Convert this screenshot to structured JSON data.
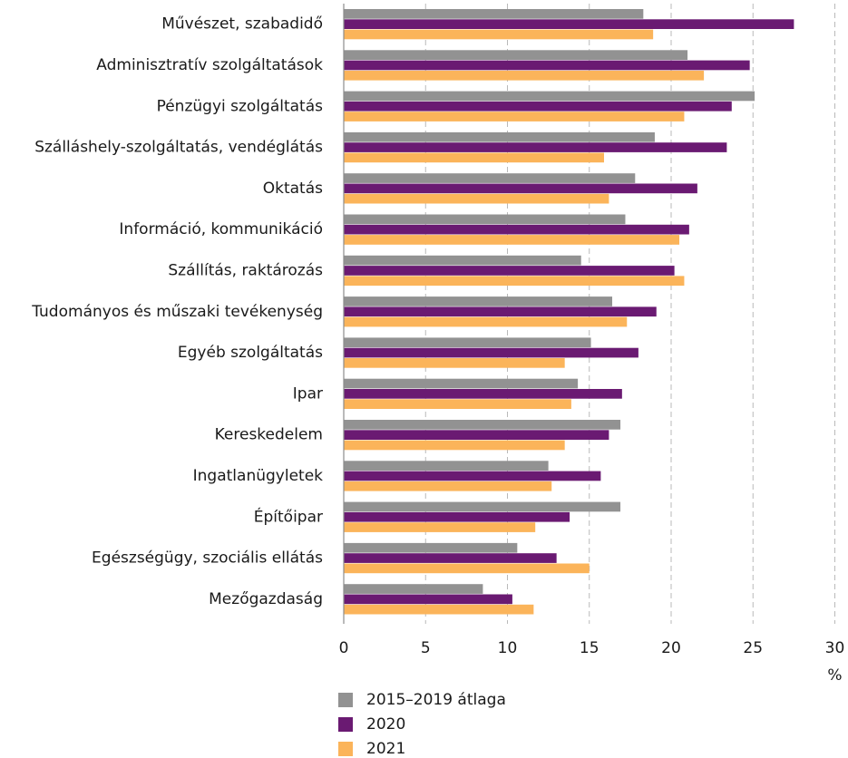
{
  "chart_data": {
    "type": "bar",
    "orientation": "horizontal",
    "categories": [
      "Művészet, szabadidő",
      "Adminisztratív szolgáltatások",
      "Pénzügyi szolgáltatás",
      "Szálláshely-szolgáltatás, vendéglátás",
      "Oktatás",
      "Információ, kommunikáció",
      "Szállítás, raktározás",
      "Tudományos és műszaki tevékenység",
      "Egyéb szolgáltatás",
      "Ipar",
      "Kereskedelem",
      "Ingatlanügyletek",
      "Építőipar",
      "Egészségügy, szociális ellátás",
      "Mezőgazdaság"
    ],
    "series": [
      {
        "name": "2015–2019 átlaga",
        "color": "#929292",
        "values": [
          18.3,
          21.0,
          25.1,
          19.0,
          17.8,
          17.2,
          14.5,
          16.4,
          15.1,
          14.3,
          16.9,
          12.5,
          16.9,
          10.6,
          8.5
        ]
      },
      {
        "name": "2020",
        "color": "#6a1a72",
        "values": [
          27.5,
          24.8,
          23.7,
          23.4,
          21.6,
          21.1,
          20.2,
          19.1,
          18.0,
          17.0,
          16.2,
          15.7,
          13.8,
          13.0,
          10.3
        ]
      },
      {
        "name": "2021",
        "color": "#fbb45a",
        "values": [
          18.9,
          22.0,
          20.8,
          15.9,
          16.2,
          20.5,
          20.8,
          17.3,
          13.5,
          13.9,
          13.5,
          12.7,
          11.7,
          15.0,
          11.6
        ]
      }
    ],
    "xlim": [
      0,
      30
    ],
    "xticks": [
      0,
      5,
      10,
      15,
      20,
      25,
      30
    ],
    "tick_labels": [
      "0",
      "5",
      "10",
      "15",
      "20",
      "25",
      "30"
    ],
    "unit": "%",
    "grid": "vertical dashed",
    "legend_position": "bottom-left"
  }
}
